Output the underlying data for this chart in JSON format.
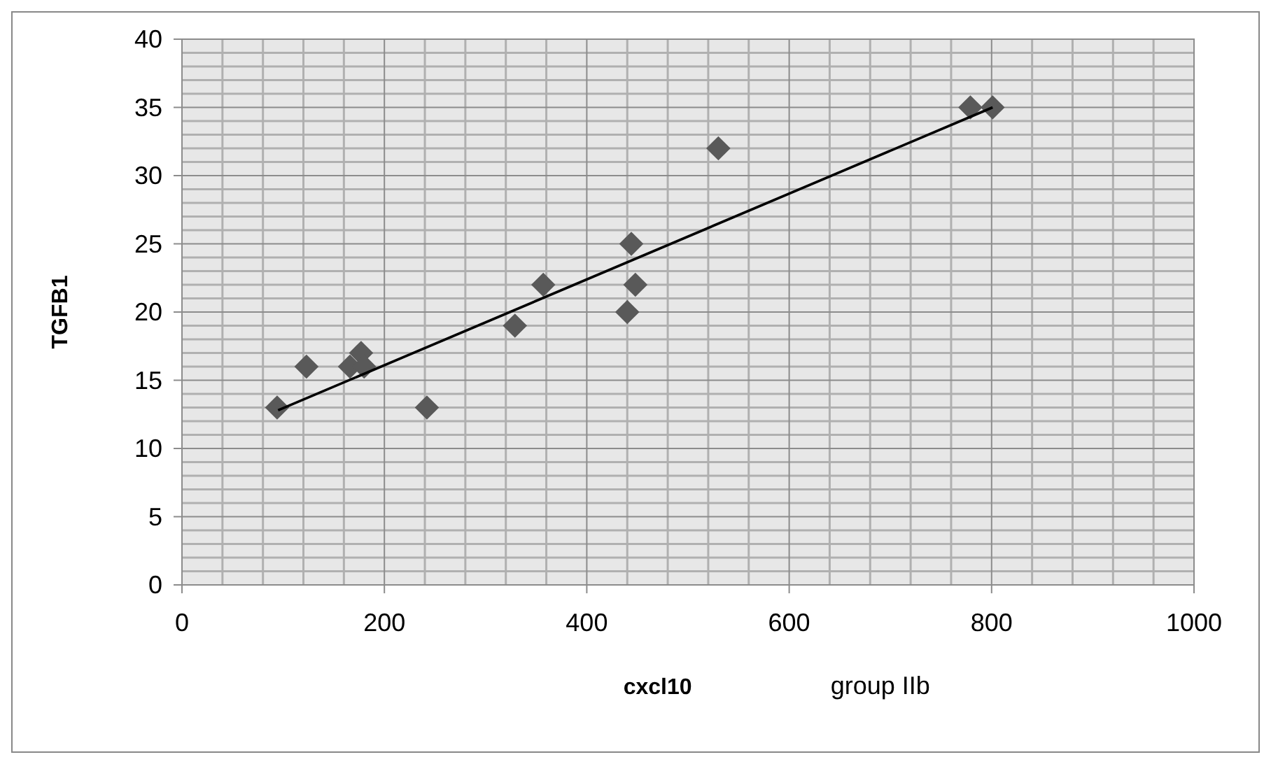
{
  "chart_data": {
    "type": "scatter",
    "xlabel": "cxcl10",
    "ylabel": "TGFB1",
    "annotations": [
      "group IIb"
    ],
    "xlim": [
      0,
      1000
    ],
    "xticks": [
      0,
      200,
      400,
      600,
      800,
      1000
    ],
    "ylim": [
      0,
      40
    ],
    "yticks": [
      0,
      5,
      10,
      15,
      20,
      25,
      30,
      35,
      40
    ],
    "grid": true,
    "marker": "diamond",
    "series": [
      {
        "color": "#595959",
        "x": [
          94,
          123,
          166,
          177,
          180,
          242,
          329,
          357,
          444,
          448,
          440,
          530,
          779,
          801
        ],
        "values": [
          13,
          16,
          16,
          17,
          16,
          13,
          19,
          22,
          25,
          22,
          20,
          32,
          35,
          35
        ]
      },
      {
        "type": "line",
        "color": "#000000",
        "x": [
          95,
          801
        ],
        "values": [
          12.8,
          35
        ],
        "marker": "none",
        "line_style": "solid"
      }
    ]
  }
}
